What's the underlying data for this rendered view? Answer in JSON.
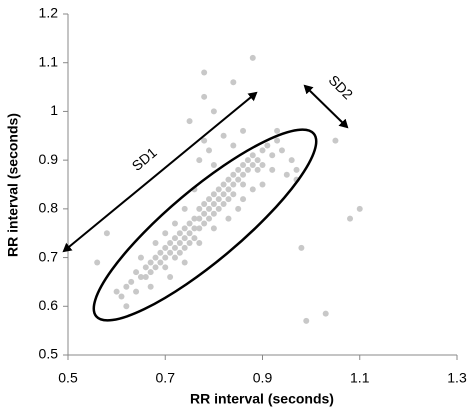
{
  "chart_data": {
    "type": "scatter",
    "x_label": "RR interval (seconds)",
    "y_label": "RR interval (seconds)",
    "annotations": [
      "SD1",
      "SD2"
    ],
    "color": "#c8c8c8",
    "xlim": [
      0.5,
      1.3
    ],
    "xticks": [
      0.5,
      0.7,
      0.9,
      1.1,
      1.3
    ],
    "ylim": [
      0.5,
      1.2
    ],
    "yticks": [
      0.5,
      0.6,
      0.7,
      0.8,
      0.9,
      1,
      1.1,
      1.2
    ],
    "x": [
      0.63,
      0.64,
      0.65,
      0.66,
      0.66,
      0.67,
      0.67,
      0.68,
      0.68,
      0.69,
      0.69,
      0.7,
      0.7,
      0.7,
      0.71,
      0.71,
      0.72,
      0.72,
      0.72,
      0.73,
      0.73,
      0.73,
      0.74,
      0.74,
      0.74,
      0.75,
      0.75,
      0.75,
      0.76,
      0.76,
      0.76,
      0.77,
      0.77,
      0.77,
      0.78,
      0.78,
      0.78,
      0.79,
      0.79,
      0.79,
      0.8,
      0.8,
      0.8,
      0.81,
      0.81,
      0.81,
      0.82,
      0.82,
      0.82,
      0.83,
      0.83,
      0.83,
      0.84,
      0.84,
      0.84,
      0.85,
      0.85,
      0.86,
      0.86,
      0.86,
      0.87,
      0.87,
      0.88,
      0.88,
      0.89,
      0.89,
      0.9,
      0.9,
      0.91,
      0.92,
      0.93,
      0.94,
      0.8,
      0.79,
      0.78,
      0.82,
      0.84,
      0.76,
      0.74,
      0.72,
      0.85,
      0.88,
      0.9,
      0.92,
      0.95,
      0.96,
      0.7,
      0.68,
      0.65,
      0.62,
      0.61,
      0.64,
      0.67,
      0.71,
      0.74,
      0.77,
      0.8,
      0.83,
      0.86,
      0.56,
      0.58,
      0.78,
      0.78,
      0.8,
      0.88,
      0.84,
      0.97,
      0.97,
      1.05,
      1.08,
      1.1,
      0.99,
      1.03,
      0.6,
      0.62,
      0.93,
      0.86,
      0.75,
      0.77,
      0.98
    ],
    "y": [
      0.65,
      0.67,
      0.66,
      0.68,
      0.66,
      0.69,
      0.67,
      0.7,
      0.68,
      0.71,
      0.69,
      0.72,
      0.7,
      0.68,
      0.73,
      0.71,
      0.74,
      0.72,
      0.7,
      0.75,
      0.73,
      0.71,
      0.76,
      0.74,
      0.72,
      0.77,
      0.75,
      0.73,
      0.78,
      0.76,
      0.74,
      0.8,
      0.78,
      0.76,
      0.81,
      0.79,
      0.77,
      0.82,
      0.8,
      0.78,
      0.83,
      0.81,
      0.79,
      0.84,
      0.82,
      0.8,
      0.85,
      0.83,
      0.81,
      0.86,
      0.84,
      0.82,
      0.87,
      0.85,
      0.83,
      0.88,
      0.86,
      0.89,
      0.87,
      0.85,
      0.88,
      0.9,
      0.89,
      0.91,
      0.9,
      0.88,
      0.92,
      0.89,
      0.93,
      0.91,
      0.94,
      0.92,
      0.89,
      0.92,
      0.94,
      0.95,
      0.93,
      0.84,
      0.8,
      0.77,
      0.8,
      0.84,
      0.85,
      0.88,
      0.87,
      0.9,
      0.75,
      0.73,
      0.7,
      0.64,
      0.62,
      0.63,
      0.64,
      0.66,
      0.69,
      0.73,
      0.76,
      0.78,
      0.82,
      0.69,
      0.75,
      1.08,
      1.03,
      1.0,
      1.11,
      1.06,
      0.88,
      0.86,
      0.94,
      0.78,
      0.8,
      0.57,
      0.585,
      0.63,
      0.6,
      0.96,
      0.96,
      0.98,
      0.9,
      0.72
    ]
  }
}
